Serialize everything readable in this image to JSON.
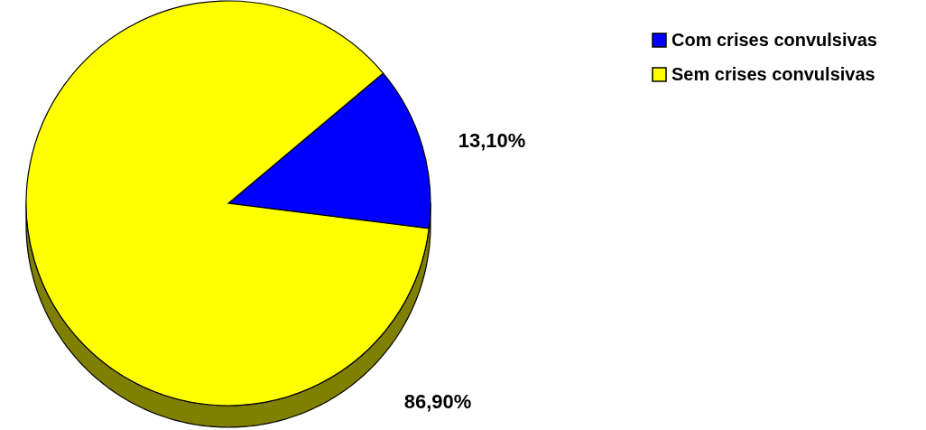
{
  "chart_data": {
    "type": "pie",
    "categories": [
      "Com crises convulsivas",
      "Sem crises convulsivas"
    ],
    "values": [
      13.1,
      86.9
    ],
    "colors": [
      "#0000ff",
      "#ffff00"
    ],
    "value_labels": [
      "13,10%",
      "86,90%"
    ],
    "legend": "top right"
  }
}
